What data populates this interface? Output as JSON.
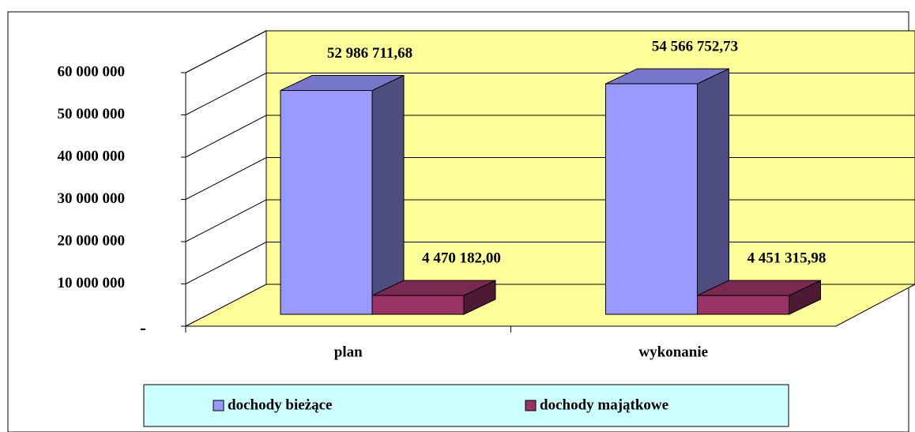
{
  "chart_data": {
    "type": "bar3d",
    "categories": [
      "plan",
      "wykonanie"
    ],
    "series": [
      {
        "name": "dochody bieżące",
        "color": "#9999ff",
        "values": [
          52986711.68,
          54566752.73
        ],
        "value_labels": [
          "52 986 711,68",
          "54 566 752,73"
        ]
      },
      {
        "name": "dochody majątkowe",
        "color": "#993366",
        "values": [
          4470182.0,
          4451315.98
        ],
        "value_labels": [
          "4 470 182,00",
          "4 451 315,98"
        ]
      }
    ],
    "ylim": [
      0,
      60000000
    ],
    "yticks": [
      {
        "value": 0,
        "label": "-"
      },
      {
        "value": 10000000,
        "label": "10 000 000"
      },
      {
        "value": 20000000,
        "label": "20 000 000"
      },
      {
        "value": 30000000,
        "label": "30 000 000"
      },
      {
        "value": 40000000,
        "label": "40 000 000"
      },
      {
        "value": 50000000,
        "label": "50 000 000"
      },
      {
        "value": 60000000,
        "label": "60 000 000"
      }
    ],
    "grid": true
  }
}
